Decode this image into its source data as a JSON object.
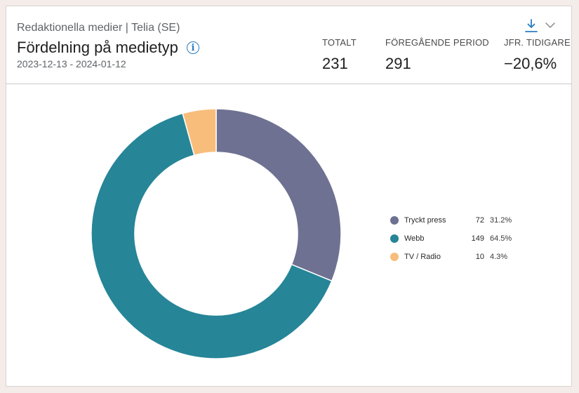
{
  "header": {
    "subtitle": "Redaktionella medier | Telia (SE)",
    "title": "Fördelning på medietyp",
    "info_icon": "info-icon",
    "date_range": "2023-12-13 - 2024-01-12"
  },
  "stats": {
    "total_label": "TOTALT",
    "total_value": "231",
    "previous_label": "FÖREGÅENDE PERIOD",
    "previous_value": "291",
    "compare_label": "JFR. TIDIGARE",
    "compare_value": "−20,6%"
  },
  "toolbar": {
    "download_icon": "download-icon",
    "menu_icon": "chevron-down-icon"
  },
  "colors": {
    "accent": "#2b7cc0",
    "tryckt_press": "#6e7191",
    "webb": "#268597",
    "tv_radio": "#f8bd7b"
  },
  "chart_data": {
    "type": "pie",
    "variant": "donut",
    "legend_position": "right",
    "categories": [
      "Tryckt press",
      "Webb",
      "TV / Radio"
    ],
    "values": [
      72,
      149,
      10
    ],
    "percent_labels": [
      "31.2%",
      "64.5%",
      "4.3%"
    ],
    "colors": [
      "#6e7191",
      "#268597",
      "#f8bd7b"
    ]
  }
}
